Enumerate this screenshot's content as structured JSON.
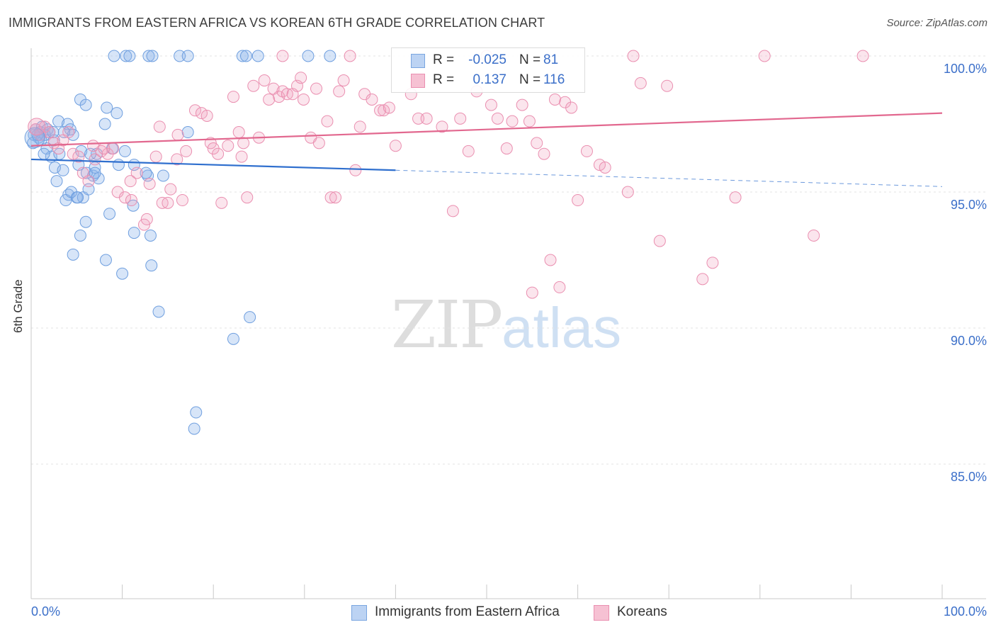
{
  "title": "IMMIGRANTS FROM EASTERN AFRICA VS KOREAN 6TH GRADE CORRELATION CHART",
  "source": "Source: ZipAtlas.com",
  "watermark": {
    "zip": "ZIP",
    "atlas": "atlas"
  },
  "colors": {
    "blue": "#6f9fdf",
    "pink": "#ea8fb0",
    "blue_line": "#2f6fce",
    "pink_line": "#e2688f",
    "axis_text": "#3b6fc9"
  },
  "legend": {
    "rows": [
      {
        "r_label": "R =",
        "r_value": "-0.025",
        "n_label": "N =",
        "n_value": "81"
      },
      {
        "r_label": "R =",
        "r_value": "0.137",
        "n_label": "N =",
        "n_value": "116"
      }
    ]
  },
  "bottom_legend": [
    "Immigrants from Eastern Africa",
    "Koreans"
  ],
  "chart_data": {
    "type": "scatter",
    "title": "IMMIGRANTS FROM EASTERN AFRICA VS KOREAN 6TH GRADE CORRELATION CHART",
    "xlabel": "",
    "ylabel": "6th Grade",
    "xlim": [
      0,
      100
    ],
    "ylim": [
      80,
      100.5
    ],
    "x_tick_labels": [
      "0.0%",
      "100.0%"
    ],
    "y_tick_labels": [
      "100.0%",
      "95.0%",
      "90.0%",
      "85.0%"
    ],
    "y_ticks": [
      100,
      95,
      90,
      85
    ],
    "grid": true,
    "series": [
      {
        "name": "Immigrants from Eastern Africa",
        "color": "#6f9fdf",
        "r": -0.025,
        "n": 81,
        "trend": {
          "x": [
            0,
            40
          ],
          "y": [
            96.2,
            95.8
          ],
          "dashed_to": [
            100,
            95.2
          ]
        },
        "points": [
          [
            0.3,
            97.1
          ],
          [
            0.5,
            97.3
          ],
          [
            0.8,
            97.0
          ],
          [
            1.0,
            97.2
          ],
          [
            1.2,
            97.4
          ],
          [
            1.5,
            97.1
          ],
          [
            1.8,
            97.3
          ],
          [
            2.0,
            97.2
          ],
          [
            2.5,
            96.9
          ],
          [
            3.0,
            97.6
          ],
          [
            1.7,
            96.6
          ],
          [
            2.2,
            96.3
          ],
          [
            2.6,
            95.9
          ],
          [
            3.1,
            96.4
          ],
          [
            3.5,
            95.8
          ],
          [
            4.0,
            97.5
          ],
          [
            4.3,
            97.3
          ],
          [
            4.6,
            97.1
          ],
          [
            5.2,
            96.0
          ],
          [
            5.5,
            96.5
          ],
          [
            2.8,
            95.4
          ],
          [
            4.1,
            94.9
          ],
          [
            3.8,
            94.7
          ],
          [
            5.0,
            94.8
          ],
          [
            5.7,
            94.8
          ],
          [
            6.3,
            95.1
          ],
          [
            6.8,
            95.6
          ],
          [
            7.4,
            95.5
          ],
          [
            6.1,
            95.7
          ],
          [
            7.0,
            95.9
          ],
          [
            5.4,
            98.4
          ],
          [
            6.0,
            98.2
          ],
          [
            8.3,
            98.1
          ],
          [
            9.4,
            97.9
          ],
          [
            8.9,
            96.6
          ],
          [
            10.3,
            96.5
          ],
          [
            9.6,
            96.0
          ],
          [
            8.1,
            97.5
          ],
          [
            7.2,
            96.4
          ],
          [
            6.5,
            96.4
          ],
          [
            8.6,
            94.2
          ],
          [
            11.2,
            94.5
          ],
          [
            12.8,
            95.6
          ],
          [
            14.5,
            95.6
          ],
          [
            17.2,
            97.2
          ],
          [
            12.6,
            95.7
          ],
          [
            11.3,
            96.0
          ],
          [
            6.0,
            93.9
          ],
          [
            5.4,
            93.4
          ],
          [
            4.6,
            92.7
          ],
          [
            8.2,
            92.5
          ],
          [
            10.0,
            92.0
          ],
          [
            11.3,
            93.5
          ],
          [
            13.1,
            93.4
          ],
          [
            13.2,
            92.3
          ],
          [
            14.0,
            90.6
          ],
          [
            22.2,
            89.6
          ],
          [
            24.0,
            90.4
          ],
          [
            18.1,
            86.9
          ],
          [
            17.9,
            86.3
          ],
          [
            9.1,
            100.0
          ],
          [
            10.4,
            100.0
          ],
          [
            10.8,
            100.0
          ],
          [
            12.9,
            100.0
          ],
          [
            13.3,
            100.0
          ],
          [
            16.3,
            100.0
          ],
          [
            17.2,
            100.0
          ],
          [
            23.2,
            100.0
          ],
          [
            23.6,
            100.0
          ],
          [
            24.9,
            100.0
          ],
          [
            30.4,
            100.0
          ],
          [
            32.8,
            100.0
          ],
          [
            0.2,
            96.8
          ],
          [
            1.1,
            96.9
          ],
          [
            0.7,
            97.1
          ],
          [
            2.4,
            97.2
          ],
          [
            3.6,
            97.2
          ],
          [
            1.4,
            96.4
          ],
          [
            7.0,
            95.7
          ],
          [
            4.4,
            95.0
          ],
          [
            5.1,
            94.8
          ]
        ]
      },
      {
        "name": "Koreans",
        "color": "#ea8fb0",
        "r": 0.137,
        "n": 116,
        "trend": {
          "x": [
            0,
            100
          ],
          "y": [
            96.7,
            97.9
          ]
        },
        "points": [
          [
            0.5,
            97.3
          ],
          [
            1.0,
            97.1
          ],
          [
            1.5,
            97.4
          ],
          [
            2.0,
            97.2
          ],
          [
            2.5,
            96.8
          ],
          [
            3.0,
            96.6
          ],
          [
            3.5,
            96.9
          ],
          [
            4.1,
            97.2
          ],
          [
            4.6,
            96.4
          ],
          [
            5.2,
            96.3
          ],
          [
            5.7,
            95.7
          ],
          [
            6.3,
            95.4
          ],
          [
            7.0,
            96.2
          ],
          [
            7.7,
            96.5
          ],
          [
            8.4,
            96.4
          ],
          [
            9.0,
            96.6
          ],
          [
            9.5,
            95.0
          ],
          [
            10.3,
            94.8
          ],
          [
            11.0,
            94.7
          ],
          [
            11.6,
            95.7
          ],
          [
            12.4,
            93.8
          ],
          [
            12.7,
            94.0
          ],
          [
            13.0,
            95.3
          ],
          [
            13.7,
            96.3
          ],
          [
            14.4,
            94.6
          ],
          [
            15.0,
            94.6
          ],
          [
            15.3,
            95.1
          ],
          [
            16.1,
            97.1
          ],
          [
            16.6,
            94.7
          ],
          [
            17.0,
            96.5
          ],
          [
            18.0,
            98.0
          ],
          [
            18.7,
            97.9
          ],
          [
            19.3,
            97.8
          ],
          [
            19.7,
            96.8
          ],
          [
            20.0,
            96.6
          ],
          [
            20.5,
            96.4
          ],
          [
            20.9,
            94.6
          ],
          [
            21.6,
            96.7
          ],
          [
            22.2,
            98.5
          ],
          [
            22.8,
            97.2
          ],
          [
            23.1,
            96.3
          ],
          [
            23.3,
            96.8
          ],
          [
            23.7,
            94.8
          ],
          [
            24.4,
            98.9
          ],
          [
            25.0,
            97.0
          ],
          [
            25.6,
            99.1
          ],
          [
            26.1,
            98.4
          ],
          [
            26.6,
            98.8
          ],
          [
            27.2,
            98.5
          ],
          [
            27.6,
            98.7
          ],
          [
            28.1,
            98.6
          ],
          [
            28.7,
            98.6
          ],
          [
            29.2,
            98.9
          ],
          [
            29.6,
            99.2
          ],
          [
            29.9,
            98.4
          ],
          [
            30.7,
            97.0
          ],
          [
            31.3,
            98.8
          ],
          [
            31.6,
            96.8
          ],
          [
            32.5,
            97.6
          ],
          [
            32.9,
            94.8
          ],
          [
            33.4,
            94.8
          ],
          [
            33.8,
            98.7
          ],
          [
            34.3,
            99.1
          ],
          [
            35.0,
            100.0
          ],
          [
            35.6,
            95.8
          ],
          [
            36.1,
            97.4
          ],
          [
            36.6,
            98.6
          ],
          [
            37.4,
            98.4
          ],
          [
            38.3,
            98.0
          ],
          [
            38.7,
            98.0
          ],
          [
            39.3,
            98.1
          ],
          [
            40.0,
            96.7
          ],
          [
            41.7,
            98.6
          ],
          [
            42.5,
            97.7
          ],
          [
            43.4,
            97.7
          ],
          [
            45.1,
            97.4
          ],
          [
            46.3,
            94.3
          ],
          [
            47.1,
            97.7
          ],
          [
            48.0,
            96.5
          ],
          [
            48.9,
            98.7
          ],
          [
            50.0,
            100.0
          ],
          [
            50.5,
            98.2
          ],
          [
            51.2,
            97.7
          ],
          [
            52.2,
            96.6
          ],
          [
            52.8,
            97.6
          ],
          [
            53.9,
            98.2
          ],
          [
            54.7,
            97.6
          ],
          [
            55.5,
            96.8
          ],
          [
            56.3,
            96.4
          ],
          [
            57.5,
            98.4
          ],
          [
            58.6,
            98.3
          ],
          [
            59.3,
            98.1
          ],
          [
            61.0,
            96.5
          ],
          [
            62.4,
            96.0
          ],
          [
            63.0,
            95.9
          ],
          [
            65.5,
            95.0
          ],
          [
            66.1,
            100.0
          ],
          [
            66.9,
            99.0
          ],
          [
            69.0,
            93.2
          ],
          [
            69.8,
            98.9
          ],
          [
            73.7,
            91.8
          ],
          [
            74.8,
            92.4
          ],
          [
            77.3,
            94.8
          ],
          [
            80.5,
            100.0
          ],
          [
            85.9,
            93.4
          ],
          [
            91.3,
            100.0
          ],
          [
            57.0,
            92.5
          ],
          [
            55.0,
            91.3
          ],
          [
            58.0,
            91.5
          ],
          [
            60.0,
            94.7
          ],
          [
            8.0,
            96.6
          ],
          [
            6.8,
            96.7
          ],
          [
            10.9,
            95.4
          ],
          [
            14.1,
            97.4
          ],
          [
            16.0,
            96.2
          ],
          [
            27.6,
            100.0
          ]
        ]
      }
    ]
  }
}
